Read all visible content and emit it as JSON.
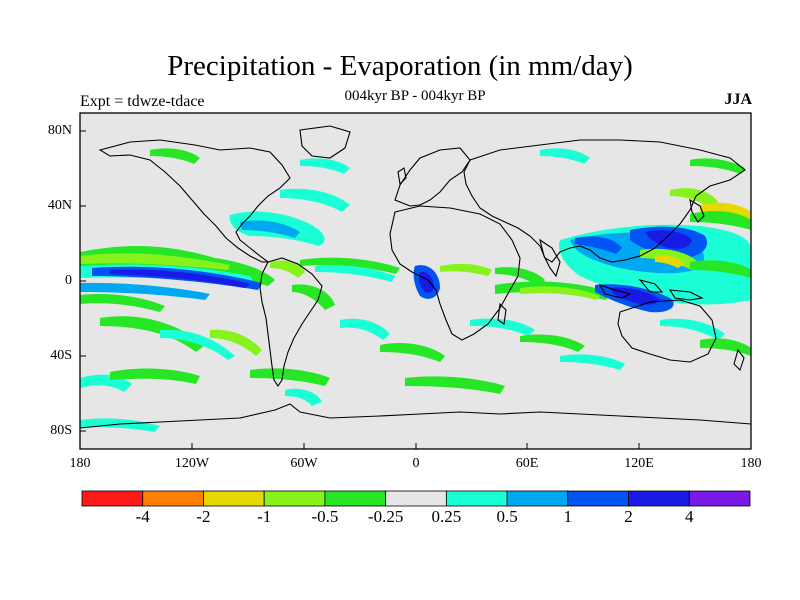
{
  "title": "Precipitation - Evaporation (in mm/day)",
  "subtitle": "004kyr BP - 004kyr BP",
  "expt_label": "Expt = tdwze-tdace",
  "season": "JJA",
  "map": {
    "ocean_color": "#e6e6e6",
    "lat_ticks": [
      "80N",
      "40N",
      "0",
      "40S",
      "80S"
    ],
    "lon_ticks": [
      "180",
      "120W",
      "60W",
      "0",
      "60E",
      "120E",
      "180"
    ]
  },
  "colorbar": {
    "colors": [
      "#ff1a1a",
      "#ff8000",
      "#e6d800",
      "#88f21c",
      "#26e626",
      "#e6e6e6",
      "#1affd5",
      "#00a8f2",
      "#0055f2",
      "#1a1ae6",
      "#7a1ae6"
    ],
    "labels": [
      "-4",
      "-2",
      "-1",
      "-0.5",
      "-0.25",
      "0.25",
      "0.5",
      "1",
      "2",
      "4"
    ]
  }
}
